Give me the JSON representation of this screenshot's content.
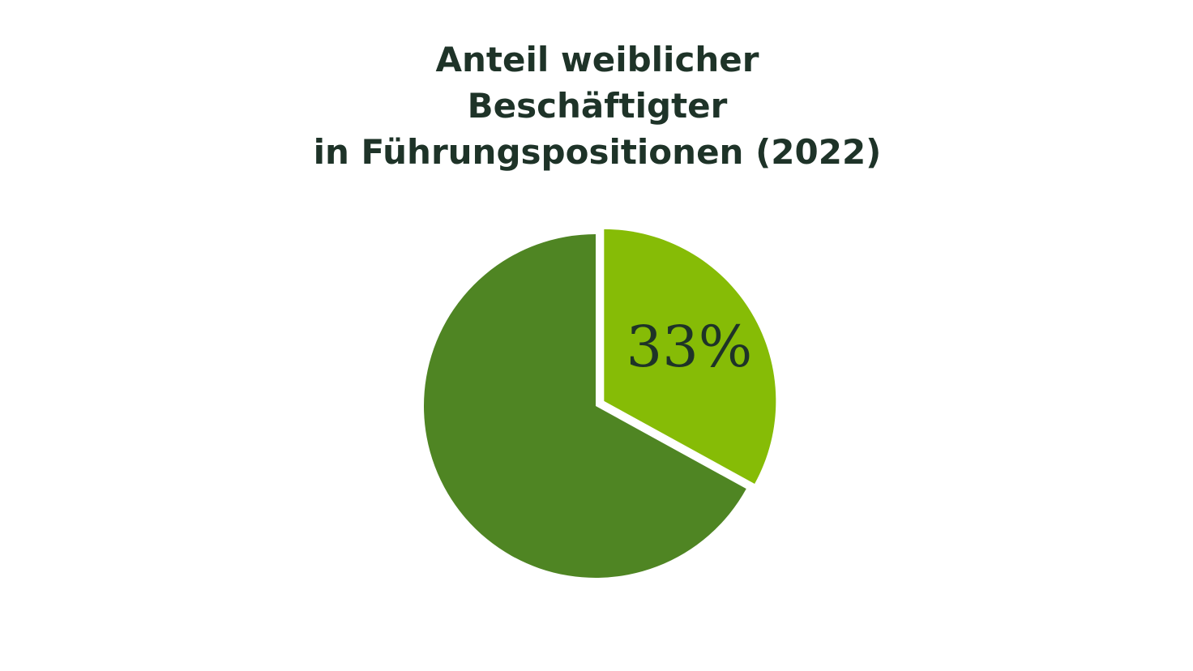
{
  "chart_data": {
    "type": "pie",
    "title": [
      "Anteil weiblicher",
      "Beschäftigter",
      "in Führungspositionen (2022)"
    ],
    "values": [
      33,
      67
    ],
    "value_labels": [
      "33%",
      null
    ],
    "colors": [
      "#86bc06",
      "#4f8523"
    ],
    "explode": [
      true,
      false
    ]
  }
}
